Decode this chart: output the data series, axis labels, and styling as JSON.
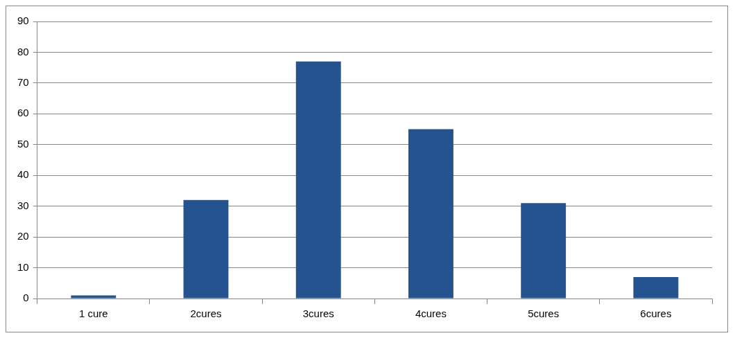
{
  "chart_data": {
    "type": "bar",
    "categories": [
      "1 cure",
      "2cures",
      "3cures",
      "4cures",
      "5cures",
      "6cures"
    ],
    "values": [
      1,
      32,
      77,
      55,
      31,
      7
    ],
    "color": "#255390",
    "ylim": [
      0,
      90
    ],
    "yticks": [
      0,
      10,
      20,
      30,
      40,
      50,
      60,
      70,
      80,
      90
    ],
    "grid": "y",
    "legend": false
  }
}
